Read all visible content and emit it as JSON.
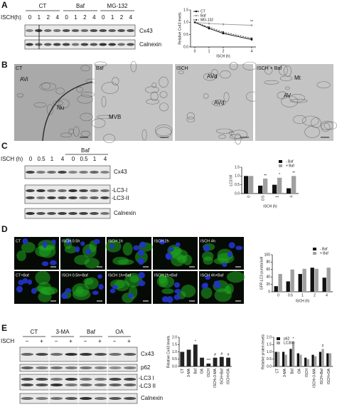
{
  "panels": {
    "A": {
      "letter": "A",
      "row_label": "ISCH(h)",
      "groups": [
        "CT",
        "Baf",
        "MG-132"
      ],
      "lanes": [
        "0",
        "1",
        "2",
        "4",
        "0",
        "1",
        "2",
        "4",
        "0",
        "1",
        "2",
        "4"
      ],
      "blots": [
        "Cx43",
        "Calnexin"
      ]
    },
    "B": {
      "letter": "B",
      "images": [
        {
          "title": "CT",
          "labels": [
            "AVi",
            "Nu"
          ]
        },
        {
          "title": "Baf",
          "labels": [
            "MVB"
          ]
        },
        {
          "title": "ISCH",
          "labels": [
            "AVd",
            "AVd"
          ]
        },
        {
          "title": "ISCH + Baf",
          "labels": [
            "Mt",
            "AV"
          ]
        }
      ]
    },
    "C": {
      "letter": "C",
      "row_label": "ISCH (h)",
      "group": "Baf",
      "lanes": [
        "0",
        "0.5",
        "1",
        "4",
        "0",
        "0.5",
        "1",
        "4"
      ],
      "blots": [
        "Cx43",
        "-LC3-I",
        "-LC3-II",
        "Calnexin"
      ]
    },
    "D": {
      "letter": "D",
      "images": [
        "CT",
        "ISCH 0.5h",
        "ISCH 1h",
        "ISCH 2h",
        "ISCH 4h",
        "CT+Baf",
        "ISCH 0.5h+Baf",
        "ISCH 1h+Baf",
        "ISCH 2h+Baf",
        "ISCH 4h+Baf"
      ]
    },
    "E": {
      "letter": "E",
      "row_label": "ISCH",
      "groups": [
        "CT",
        "3-MA",
        "Baf",
        "OA"
      ],
      "signs": [
        "−",
        "+",
        "−",
        "+",
        "−",
        "+",
        "−",
        "+"
      ],
      "blots": [
        "Cx43",
        "p62",
        "-LC3 I",
        "-LC3 II",
        "Calnexin"
      ]
    }
  },
  "chart_data": [
    {
      "type": "line",
      "x_label": "ISCH (h)",
      "y_label": "Relative Cx43 levels",
      "x": [
        0,
        1,
        2,
        4
      ],
      "xlim": [
        -0.3,
        4.3
      ],
      "xticks": [
        0,
        1,
        2,
        4
      ],
      "ylim": [
        0,
        1.5
      ],
      "yticks": [
        {
          "value": 0,
          "label": "0.0"
        },
        0.5,
        {
          "value": 1,
          "label": "1.0"
        },
        1.5
      ],
      "legend": "upper left",
      "series": [
        {
          "name": "CT",
          "color": "#000000",
          "line_style": "solid",
          "values": [
            1,
            0.75,
            0.55,
            0.3
          ]
        },
        {
          "name": "Baf",
          "color": "#999999",
          "line_style": "solid",
          "values": [
            1,
            0.95,
            0.92,
            0.88
          ],
          "significance": [
            null,
            null,
            null,
            "**"
          ]
        },
        {
          "name": "MG-132",
          "color": "#333333",
          "line_style": "dashed",
          "values": [
            1,
            0.8,
            0.6,
            0.35
          ]
        }
      ]
    },
    {
      "type": "bar",
      "x_label": "ISCH (h)",
      "y_label": "LC3 II/I",
      "categories": [
        "0",
        "0.5",
        "1",
        "4"
      ],
      "ylim": [
        0,
        1.5
      ],
      "yticks": [
        {
          "value": 0,
          "label": "0.0"
        },
        0.5,
        {
          "value": 1,
          "label": "1.0"
        },
        1.5
      ],
      "legend": "upper right",
      "series": [
        {
          "name": "- Baf",
          "color": "#111111",
          "values": [
            1,
            0.45,
            0.5,
            0.3
          ]
        },
        {
          "name": "+ Baf",
          "color": "#a0a0a0",
          "values": [
            1,
            0.85,
            0.9,
            1.0
          ],
          "significance": [
            null,
            "**",
            "*",
            "**"
          ]
        }
      ]
    },
    {
      "type": "bar",
      "x_label": "ISCH (h)",
      "y_label": "GFP-LC3 puncta/cell",
      "categories": [
        "0",
        "0.5",
        "1",
        "2",
        "4"
      ],
      "ylim": [
        0,
        100
      ],
      "yticks": [
        0,
        20,
        40,
        60,
        80,
        100
      ],
      "legend": "upper right",
      "series": [
        {
          "name": "- Baf",
          "color": "#111111",
          "values": [
            15,
            28,
            48,
            65,
            38
          ]
        },
        {
          "name": "+ Baf",
          "color": "#a0a0a0",
          "values": [
            48,
            60,
            62,
            62,
            65
          ]
        }
      ]
    },
    {
      "type": "bar",
      "y_label": "Relative Cx43 levels",
      "categories": [
        "CT",
        "3-MA",
        "Baf",
        "OA",
        "ISCH",
        "ISCH+3-MA",
        "ISCH+Baf",
        "ISCH+OA"
      ],
      "ylim": [
        0,
        2.0
      ],
      "yticks": [
        {
          "value": 0,
          "label": "0.0"
        },
        0.5,
        {
          "value": 1,
          "label": "1.0"
        },
        1.5,
        {
          "value": 2,
          "label": "2.0"
        }
      ],
      "series": [
        {
          "color": "#222222",
          "values": [
            1.0,
            1.15,
            1.5,
            0.6,
            0.2,
            0.6,
            0.65,
            0.6
          ],
          "significance": [
            null,
            null,
            "*",
            null,
            "***",
            "#",
            "#",
            "#"
          ]
        }
      ]
    },
    {
      "type": "bar",
      "y_label": "Relative protein levels",
      "categories": [
        "CT",
        "3-MA",
        "Baf",
        "OA",
        "ISCH",
        "ISCH+3-MA",
        "ISCH+Baf",
        "ISCH+OA"
      ],
      "ylim": [
        0,
        2.0
      ],
      "yticks": [
        {
          "value": 0,
          "label": "0.0"
        },
        0.5,
        {
          "value": 1,
          "label": "1.0"
        },
        1.5,
        {
          "value": 2,
          "label": "2.0"
        }
      ],
      "legend": "upper left",
      "series": [
        {
          "name": "p62",
          "color": "#111111",
          "values": [
            1.0,
            1.0,
            1.2,
            0.9,
            0.6,
            0.8,
            1.0,
            0.9
          ]
        },
        {
          "name": "LC3II/I",
          "color": "#a0a0a0",
          "values": [
            1.0,
            0.8,
            1.7,
            0.8,
            0.5,
            0.7,
            1.2,
            0.9
          ],
          "significance": [
            null,
            null,
            "*",
            null,
            null,
            null,
            "#",
            null
          ]
        }
      ]
    }
  ]
}
